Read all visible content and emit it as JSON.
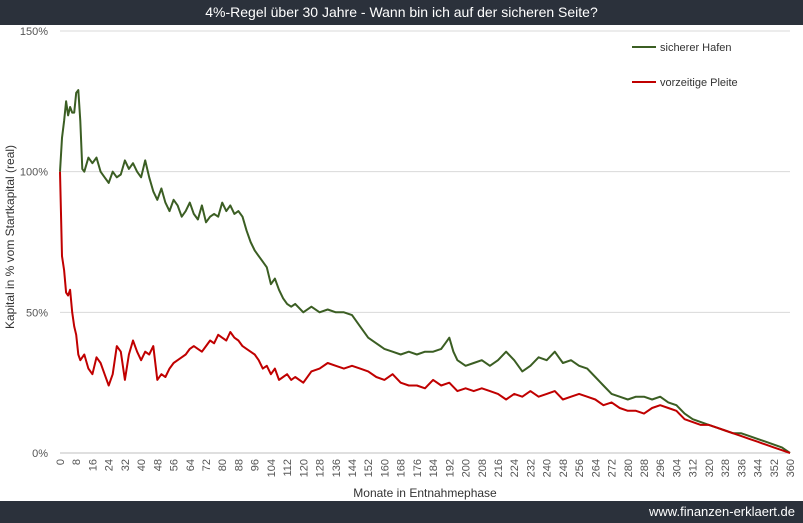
{
  "chart_data": {
    "type": "line",
    "title": "4%-Regel über 30 Jahre - Wann bin ich auf der sicheren Seite?",
    "xlabel": "Monate in Entnahmephase",
    "ylabel": "Kapital in % vom Startkapital (real)",
    "ylim": [
      0,
      150
    ],
    "xlim": [
      0,
      360
    ],
    "yticks": [
      "0%",
      "50%",
      "100%",
      "150%"
    ],
    "ytick_values": [
      0,
      50,
      100,
      150
    ],
    "xticks": [
      0,
      8,
      16,
      24,
      32,
      40,
      48,
      56,
      64,
      72,
      80,
      88,
      96,
      104,
      112,
      120,
      128,
      136,
      144,
      152,
      160,
      168,
      176,
      184,
      192,
      200,
      208,
      216,
      224,
      232,
      240,
      248,
      256,
      264,
      272,
      280,
      288,
      296,
      304,
      312,
      320,
      328,
      336,
      344,
      352,
      360
    ],
    "grid": true,
    "legend": "top-right",
    "series": [
      {
        "name": "sicherer Hafen",
        "color": "#3b5e23",
        "x": [
          0,
          1,
          2,
          3,
          4,
          5,
          6,
          7,
          8,
          9,
          10,
          11,
          12,
          14,
          16,
          18,
          20,
          22,
          24,
          26,
          28,
          30,
          32,
          34,
          36,
          38,
          40,
          42,
          44,
          46,
          48,
          50,
          52,
          54,
          56,
          58,
          60,
          62,
          64,
          66,
          68,
          70,
          72,
          74,
          76,
          78,
          80,
          82,
          84,
          86,
          88,
          90,
          92,
          94,
          96,
          98,
          100,
          102,
          104,
          106,
          108,
          110,
          112,
          114,
          116,
          120,
          124,
          128,
          132,
          136,
          140,
          144,
          148,
          152,
          156,
          160,
          164,
          168,
          172,
          176,
          180,
          184,
          188,
          190,
          192,
          194,
          196,
          200,
          204,
          208,
          212,
          216,
          220,
          224,
          228,
          232,
          236,
          240,
          244,
          246,
          248,
          252,
          256,
          260,
          264,
          268,
          272,
          276,
          280,
          284,
          288,
          292,
          296,
          300,
          304,
          308,
          312,
          316,
          320,
          324,
          328,
          332,
          336,
          340,
          344,
          348,
          352,
          356,
          360
        ],
        "values": [
          100,
          112,
          118,
          125,
          120,
          123,
          121,
          121,
          128,
          129,
          118,
          101,
          100,
          105,
          103,
          105,
          100,
          98,
          96,
          100,
          98,
          99,
          104,
          101,
          103,
          100,
          98,
          104,
          98,
          93,
          90,
          94,
          89,
          86,
          90,
          88,
          84,
          86,
          89,
          85,
          83,
          88,
          82,
          84,
          85,
          84,
          89,
          86,
          88,
          85,
          86,
          84,
          79,
          75,
          72,
          70,
          68,
          66,
          60,
          62,
          58,
          55,
          53,
          52,
          53,
          50,
          52,
          50,
          51,
          50,
          50,
          49,
          45,
          41,
          39,
          37,
          36,
          35,
          36,
          35,
          36,
          36,
          37,
          39,
          41,
          36,
          33,
          31,
          32,
          33,
          31,
          33,
          36,
          33,
          29,
          31,
          34,
          33,
          36,
          34,
          32,
          33,
          31,
          30,
          27,
          24,
          21,
          20,
          19,
          20,
          20,
          19,
          20,
          18,
          17,
          14,
          12,
          11,
          10,
          9,
          8,
          7,
          7,
          6,
          5,
          4,
          3,
          2,
          0
        ]
      },
      {
        "name": "vorzeitige Pleite",
        "color": "#c00000",
        "x": [
          0,
          1,
          2,
          3,
          4,
          5,
          6,
          7,
          8,
          9,
          10,
          12,
          14,
          16,
          18,
          20,
          22,
          24,
          26,
          28,
          30,
          32,
          34,
          36,
          38,
          40,
          42,
          44,
          46,
          48,
          50,
          52,
          54,
          56,
          58,
          60,
          62,
          64,
          66,
          68,
          70,
          72,
          74,
          76,
          78,
          80,
          82,
          84,
          86,
          88,
          90,
          92,
          94,
          96,
          98,
          100,
          102,
          104,
          106,
          108,
          110,
          112,
          114,
          116,
          120,
          124,
          128,
          132,
          136,
          140,
          144,
          148,
          152,
          156,
          160,
          164,
          168,
          172,
          176,
          180,
          184,
          188,
          192,
          196,
          200,
          204,
          208,
          212,
          216,
          220,
          224,
          228,
          232,
          236,
          240,
          244,
          248,
          252,
          256,
          260,
          264,
          268,
          272,
          276,
          280,
          284,
          288,
          292,
          296,
          300,
          304,
          308,
          312,
          316,
          320,
          324,
          328,
          332,
          336,
          340,
          344,
          348,
          352,
          356,
          360
        ],
        "values": [
          100,
          70,
          65,
          57,
          56,
          58,
          50,
          45,
          42,
          35,
          33,
          35,
          30,
          28,
          34,
          32,
          28,
          24,
          28,
          38,
          36,
          26,
          35,
          40,
          36,
          33,
          36,
          35,
          38,
          26,
          28,
          27,
          30,
          32,
          33,
          34,
          35,
          37,
          38,
          37,
          36,
          38,
          40,
          39,
          42,
          41,
          40,
          43,
          41,
          40,
          38,
          37,
          36,
          35,
          33,
          30,
          31,
          28,
          30,
          26,
          27,
          28,
          26,
          27,
          25,
          29,
          30,
          32,
          31,
          30,
          31,
          30,
          29,
          27,
          26,
          28,
          25,
          24,
          24,
          23,
          26,
          24,
          25,
          22,
          23,
          22,
          23,
          22,
          21,
          19,
          21,
          20,
          22,
          20,
          21,
          22,
          19,
          20,
          21,
          20,
          19,
          17,
          18,
          16,
          15,
          15,
          14,
          16,
          17,
          16,
          15,
          12,
          11,
          10,
          10,
          9,
          8,
          7,
          6,
          5,
          4,
          3,
          2,
          1,
          0
        ]
      }
    ]
  },
  "footer": {
    "url": "www.finanzen-erklaert.de"
  }
}
